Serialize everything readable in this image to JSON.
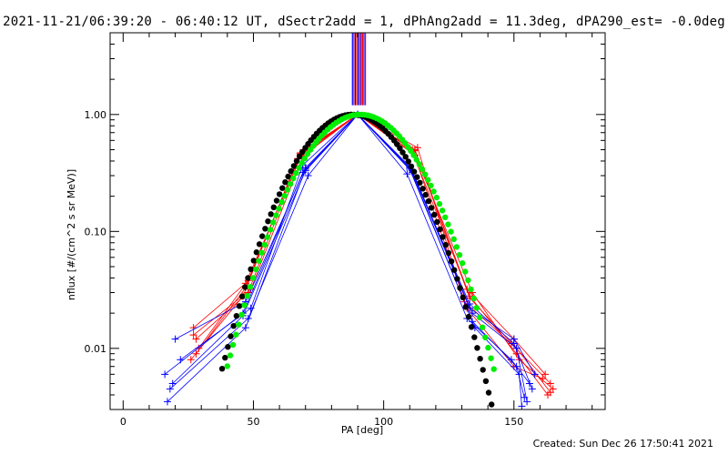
{
  "page": {
    "title": "2021-11-21/06:39:20 - 06:40:12 UT, dSectr2add = 1, dPhAng2add = 11.3deg, dPA290_est= -0.0deg",
    "footer": "Created: Sun Dec 26 17:50:41 2021"
  },
  "chart_data": {
    "type": "line",
    "title": "2021-11-21/06:39:20 - 06:40:12 UT, dSectr2add = 1, dPhAng2add = 11.3deg, dPA290_est= -0.0deg",
    "xlabel": "PA [deg]",
    "ylabel": "nflux [#/(cm^2 s sr MeV)]",
    "xlim": [
      -5,
      185
    ],
    "ylim": [
      0.003,
      5
    ],
    "yscale": "log",
    "grid": false,
    "xticks": [
      0,
      50,
      100,
      150
    ],
    "xtick_labels": [
      "0",
      "50",
      "100",
      "150"
    ],
    "yticks": [
      0.01,
      0.1,
      1.0
    ],
    "ytick_labels": [
      "0.01",
      "0.10",
      "1.00"
    ],
    "colors": {
      "red_series": "#ff0000",
      "blue_series": "#0000ff",
      "black_fit": "#000000",
      "green_fit": "#00ee00"
    },
    "series": [
      {
        "color": "#ff0000",
        "x": [
          28,
          48,
          68,
          90,
          112,
          132,
          150,
          162
        ],
        "y": [
          0.012,
          0.03,
          0.45,
          1.0,
          0.5,
          0.032,
          0.012,
          0.006
        ]
      },
      {
        "color": "#ff0000",
        "x": [
          27,
          47,
          69,
          90,
          111,
          133,
          151,
          163
        ],
        "y": [
          0.015,
          0.036,
          0.48,
          1.0,
          0.48,
          0.028,
          0.009,
          0.004
        ]
      },
      {
        "color": "#ff0000",
        "x": [
          26,
          46,
          67,
          90,
          113,
          131,
          149,
          164
        ],
        "y": [
          0.008,
          0.028,
          0.42,
          1.0,
          0.52,
          0.025,
          0.011,
          0.005
        ]
      },
      {
        "color": "#ff0000",
        "x": [
          29,
          48,
          68,
          90,
          112,
          134,
          152,
          165
        ],
        "y": [
          0.01,
          0.038,
          0.46,
          1.0,
          0.45,
          0.03,
          0.008,
          0.0045
        ]
      },
      {
        "color": "#ff0000",
        "x": [
          27,
          49,
          69,
          90,
          111,
          132,
          150,
          161
        ],
        "y": [
          0.013,
          0.032,
          0.44,
          1.0,
          0.5,
          0.022,
          0.007,
          0.0055
        ]
      },
      {
        "color": "#ff0000",
        "x": [
          28,
          47,
          68,
          90,
          112,
          133,
          151,
          164
        ],
        "y": [
          0.009,
          0.033,
          0.47,
          1.0,
          0.49,
          0.027,
          0.01,
          0.0042
        ]
      },
      {
        "color": "#0000ff",
        "x": [
          20,
          47,
          70,
          90,
          110,
          133,
          150,
          158
        ],
        "y": [
          0.012,
          0.025,
          0.35,
          1.0,
          0.36,
          0.022,
          0.012,
          0.006
        ]
      },
      {
        "color": "#0000ff",
        "x": [
          16,
          46,
          69,
          90,
          111,
          134,
          151,
          155
        ],
        "y": [
          0.006,
          0.02,
          0.32,
          1.0,
          0.33,
          0.02,
          0.01,
          0.0035
        ]
      },
      {
        "color": "#0000ff",
        "x": [
          18,
          48,
          71,
          90,
          109,
          132,
          149,
          156
        ],
        "y": [
          0.0045,
          0.018,
          0.3,
          1.0,
          0.31,
          0.018,
          0.008,
          0.005
        ]
      },
      {
        "color": "#0000ff",
        "x": [
          17,
          47,
          70,
          90,
          110,
          135,
          152,
          153
        ],
        "y": [
          0.0035,
          0.015,
          0.34,
          1.0,
          0.35,
          0.015,
          0.006,
          0.0032
        ]
      },
      {
        "color": "#0000ff",
        "x": [
          22,
          49,
          69,
          90,
          111,
          133,
          150,
          157
        ],
        "y": [
          0.008,
          0.022,
          0.37,
          1.0,
          0.32,
          0.024,
          0.011,
          0.0045
        ]
      },
      {
        "color": "#0000ff",
        "x": [
          19,
          46,
          70,
          90,
          110,
          134,
          151,
          154
        ],
        "y": [
          0.005,
          0.019,
          0.33,
          1.0,
          0.34,
          0.017,
          0.007,
          0.0038
        ]
      }
    ],
    "fits": [
      {
        "name": "",
        "color": "#000000",
        "peak_x": 88,
        "width_deg": 15.8,
        "x_range": [
          38,
          146
        ]
      },
      {
        "name": "",
        "color": "#00ee00",
        "peak_x": 91,
        "width_deg": 16.2,
        "x_range": [
          40,
          143
        ]
      }
    ],
    "vertical_band": {
      "x": [
        88,
        93
      ],
      "y_bottom": 1.2
    }
  }
}
